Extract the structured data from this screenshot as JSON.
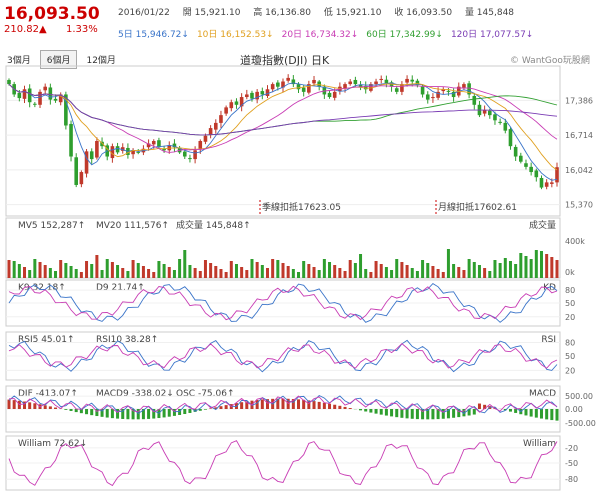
{
  "header": {
    "price": "16,093.50",
    "change": "210.82▲",
    "change_pct": "1.33%",
    "date": "2016/01/22",
    "open": "開 15,921.10",
    "high": "高 16,136.80",
    "low": "低 15,921.10",
    "close": "收 16,093.50",
    "volume": "量 145,848"
  },
  "ma_readout": [
    {
      "label": "5日",
      "value": "15,946.72↓",
      "color": "#3a74c9"
    },
    {
      "label": "10日",
      "value": "16,152.53↓",
      "color": "#e0a020"
    },
    {
      "label": "20日",
      "value": "16,734.32↓",
      "color": "#c83cb4"
    },
    {
      "label": "60日",
      "value": "17,342.99↓",
      "color": "#33a033"
    },
    {
      "label": "120日",
      "value": "17,077.57↓",
      "color": "#7a3cb4"
    }
  ],
  "tabs": [
    {
      "label": "3個月",
      "active": false
    },
    {
      "label": "6個月",
      "active": true
    },
    {
      "label": "12個月",
      "active": false
    }
  ],
  "chart_title": "道瓊指數(DJI) 日K",
  "brand": "© WantGoo玩股網",
  "annotations": {
    "season": "季線扣抵17623.05",
    "month": "月線扣抵17602.61"
  },
  "colors": {
    "up": "#c0392b",
    "down": "#2e9e2e",
    "ma5": "#3a74c9",
    "ma10": "#e0a020",
    "ma20": "#c83cb4",
    "ma60": "#33a033",
    "ma120": "#7a3cb4"
  },
  "panels": {
    "volume": {
      "ma5": "MV5 152,287↑",
      "ma20": "MV20 111,576↑",
      "vol": "成交量 145,848↑",
      "name": "成交量",
      "scale_top": "400k",
      "scale_bottom": "0k"
    },
    "kd": {
      "k": "K9 32.18↑",
      "d": "D9 21.74↑",
      "name": "KD",
      "ticks": [
        "80",
        "50",
        "20"
      ]
    },
    "rsi": {
      "rsi5": "RSI5 45.01↑",
      "rsi10": "RSI10 38.28↑",
      "name": "RSI",
      "ticks": [
        "80",
        "50",
        "20"
      ]
    },
    "macd": {
      "dif": "DIF -413.07↑",
      "macd": "MACD9 -338.02↓",
      "osc": "OSC -75.06↑",
      "name": "MACD",
      "ticks": [
        "500.00",
        "0.00",
        "-500.00"
      ]
    },
    "william": {
      "w": "William 72.62↓",
      "name": "William",
      "ticks": [
        "-20",
        "-50",
        "-80"
      ]
    }
  },
  "chart_data": {
    "type": "line",
    "price_ticks": [
      17386,
      16714,
      16042,
      15370
    ],
    "close": [
      17700,
      17500,
      17430,
      17600,
      17350,
      17300,
      17550,
      17650,
      17400,
      17380,
      17500,
      16900,
      16300,
      15750,
      16000,
      16400,
      16250,
      16600,
      16500,
      16300,
      16500,
      16380,
      16480,
      16330,
      16420,
      16380,
      16450,
      16550,
      16600,
      16480,
      16420,
      16520,
      16480,
      16380,
      16300,
      16250,
      16420,
      16600,
      16700,
      16850,
      16950,
      17100,
      17250,
      17350,
      17300,
      17450,
      17500,
      17420,
      17550,
      17500,
      17600,
      17700,
      17650,
      17750,
      17820,
      17700,
      17600,
      17550,
      17700,
      17780,
      17650,
      17500,
      17450,
      17550,
      17650,
      17700,
      17750,
      17700,
      17650,
      17600,
      17700,
      17750,
      17800,
      17720,
      17650,
      17550,
      17700,
      17800,
      17750,
      17680,
      17500,
      17400,
      17450,
      17550,
      17600,
      17550,
      17450,
      17650,
      17700,
      17500,
      17300,
      17100,
      17200,
      17100,
      17000,
      16950,
      16800,
      16500,
      16300,
      16200,
      16100,
      16000,
      15900,
      15700,
      15800,
      15800,
      16093
    ]
  }
}
